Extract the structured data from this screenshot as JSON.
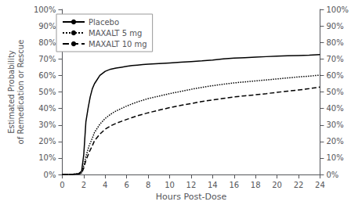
{
  "chart_data": {
    "type": "line",
    "xlabel": "Hours Post-Dose",
    "ylabel": "Estimated Probability\nof Remedication or Rescue",
    "xlim": [
      0,
      24
    ],
    "xticks": [
      0,
      2,
      4,
      6,
      8,
      10,
      12,
      14,
      16,
      18,
      20,
      22,
      24
    ],
    "ylim": [
      0,
      1.0
    ],
    "yticks": [
      {
        "value": 0.0,
        "label": "0%"
      },
      {
        "value": 0.1,
        "label": "10%"
      },
      {
        "value": 0.2,
        "label": "20%"
      },
      {
        "value": 0.3,
        "label": "30%"
      },
      {
        "value": 0.4,
        "label": "40%"
      },
      {
        "value": 0.5,
        "label": "50%"
      },
      {
        "value": 0.6,
        "label": "60%"
      },
      {
        "value": 0.7,
        "label": "70%"
      },
      {
        "value": 0.8,
        "label": "80%"
      },
      {
        "value": 0.9,
        "label": "90%"
      },
      {
        "value": 1.0,
        "label": "100%"
      }
    ],
    "y2lim": [
      0,
      1.0
    ],
    "y2ticks": [
      {
        "value": 0.0,
        "label": "0%"
      },
      {
        "value": 0.1,
        "label": "10%"
      },
      {
        "value": 0.2,
        "label": "20%"
      },
      {
        "value": 0.3,
        "label": "30%"
      },
      {
        "value": 0.4,
        "label": "40%"
      },
      {
        "value": 0.5,
        "label": "50%"
      },
      {
        "value": 0.6,
        "label": "60%"
      },
      {
        "value": 0.7,
        "label": "70%"
      },
      {
        "value": 0.8,
        "label": "80%"
      },
      {
        "value": 0.9,
        "label": "90%"
      },
      {
        "value": 1.0,
        "label": "100%"
      }
    ],
    "grid": false,
    "legend": "upper left",
    "series": [
      {
        "name": "Placebo",
        "line_style": "solid",
        "color": "#000000",
        "x": [
          0,
          0.5,
          1.0,
          1.5,
          1.8,
          2.0,
          2.1,
          2.2,
          2.4,
          2.6,
          2.8,
          3.0,
          3.2,
          3.5,
          4.0,
          4.5,
          5.0,
          5.5,
          6.0,
          6.5,
          7.0,
          7.5,
          8.0,
          9.0,
          10.0,
          11.0,
          12.0,
          13.0,
          14.0,
          15.0,
          16.0,
          17.0,
          18.0,
          19.0,
          20.0,
          21.0,
          22.0,
          23.0,
          24.0
        ],
        "values": [
          0.0,
          0.001,
          0.002,
          0.005,
          0.02,
          0.12,
          0.22,
          0.32,
          0.4,
          0.47,
          0.52,
          0.55,
          0.57,
          0.6,
          0.625,
          0.638,
          0.645,
          0.65,
          0.655,
          0.66,
          0.663,
          0.666,
          0.668,
          0.672,
          0.676,
          0.68,
          0.684,
          0.688,
          0.693,
          0.7,
          0.705,
          0.708,
          0.711,
          0.714,
          0.717,
          0.719,
          0.721,
          0.723,
          0.727
        ]
      },
      {
        "name": "MAXALT 5 mg",
        "line_style": "dotted",
        "color": "#000000",
        "x": [
          0,
          0.5,
          1.0,
          1.5,
          1.8,
          2.0,
          2.2,
          2.5,
          2.8,
          3.0,
          3.5,
          4.0,
          4.5,
          5.0,
          5.5,
          6.0,
          6.5,
          7.0,
          7.5,
          8.0,
          9.0,
          10.0,
          11.0,
          12.0,
          13.0,
          14.0,
          15.0,
          16.0,
          17.0,
          18.0,
          19.0,
          20.0,
          21.0,
          22.0,
          23.0,
          24.0
        ],
        "values": [
          0.0,
          0.001,
          0.002,
          0.005,
          0.01,
          0.055,
          0.11,
          0.175,
          0.22,
          0.255,
          0.305,
          0.34,
          0.365,
          0.385,
          0.4,
          0.415,
          0.428,
          0.44,
          0.45,
          0.46,
          0.475,
          0.49,
          0.503,
          0.516,
          0.528,
          0.538,
          0.547,
          0.555,
          0.561,
          0.567,
          0.573,
          0.579,
          0.585,
          0.591,
          0.596,
          0.602
        ]
      },
      {
        "name": "MAXALT 10 mg",
        "line_style": "dashed",
        "color": "#000000",
        "x": [
          0,
          0.5,
          1.0,
          1.5,
          1.8,
          2.0,
          2.2,
          2.5,
          2.8,
          3.0,
          3.5,
          4.0,
          4.5,
          5.0,
          5.5,
          6.0,
          6.5,
          7.0,
          7.5,
          8.0,
          9.0,
          10.0,
          11.0,
          12.0,
          13.0,
          14.0,
          15.0,
          16.0,
          17.0,
          18.0,
          19.0,
          20.0,
          21.0,
          22.0,
          23.0,
          24.0
        ],
        "values": [
          0.0,
          0.001,
          0.002,
          0.004,
          0.008,
          0.04,
          0.085,
          0.135,
          0.175,
          0.205,
          0.245,
          0.275,
          0.295,
          0.31,
          0.322,
          0.334,
          0.345,
          0.356,
          0.365,
          0.374,
          0.39,
          0.405,
          0.418,
          0.43,
          0.442,
          0.452,
          0.461,
          0.47,
          0.477,
          0.483,
          0.49,
          0.498,
          0.505,
          0.512,
          0.52,
          0.53
        ]
      }
    ]
  }
}
